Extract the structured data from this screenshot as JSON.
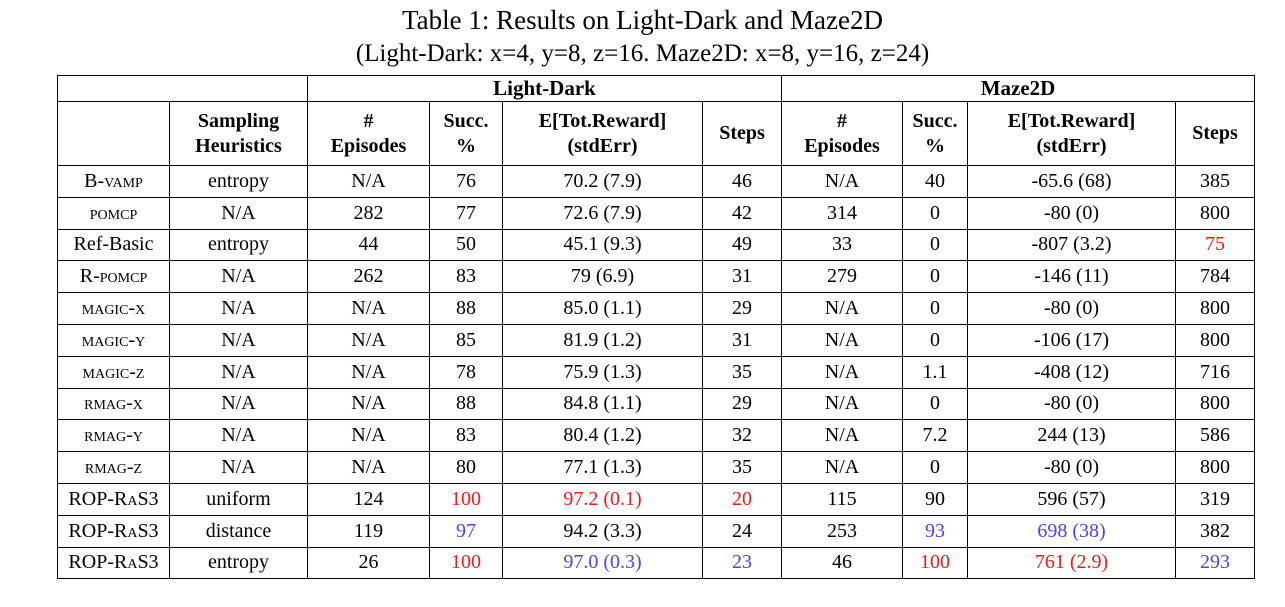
{
  "caption": {
    "title": "Table 1: Results on Light-Dark and Maze2D",
    "subtitle": "(Light-Dark: x=4, y=8, z=16. Maze2D: x=8, y=16, z=24)"
  },
  "colors": {
    "red": "#f81515",
    "blue": "#4545f2",
    "black": "#000000"
  },
  "table": {
    "group_headers": [
      {
        "label": "Light-Dark",
        "span": 4
      },
      {
        "label": "Maze2D",
        "span": 4
      }
    ],
    "column_headers": [
      "",
      "Sampling\nHeuristics",
      "#\nEpisodes",
      "Succ.\n%",
      "E[Tot.Reward]\n(stdErr)",
      "Steps",
      "#\nEpisodes",
      "Succ.\n%",
      "E[Tot.Reward]\n(stdErr)",
      "Steps"
    ],
    "rows": [
      {
        "label": "B-vamp",
        "smallcaps": true,
        "cells": [
          {
            "t": "entropy"
          },
          {
            "t": "N/A"
          },
          {
            "t": "76"
          },
          {
            "t": "70.2 (7.9)"
          },
          {
            "t": "46"
          },
          {
            "t": "N/A"
          },
          {
            "t": "40"
          },
          {
            "t": "-65.6 (68)"
          },
          {
            "t": "385"
          }
        ]
      },
      {
        "label": "pomcp",
        "smallcaps": true,
        "cells": [
          {
            "t": "N/A"
          },
          {
            "t": "282"
          },
          {
            "t": "77"
          },
          {
            "t": "72.6 (7.9)"
          },
          {
            "t": "42"
          },
          {
            "t": "314"
          },
          {
            "t": "0"
          },
          {
            "t": "-80 (0)"
          },
          {
            "t": "800"
          }
        ]
      },
      {
        "label": "Ref-Basic",
        "smallcaps": false,
        "cells": [
          {
            "t": "entropy"
          },
          {
            "t": "44"
          },
          {
            "t": "50"
          },
          {
            "t": "45.1 (9.3)"
          },
          {
            "t": "49"
          },
          {
            "t": "33"
          },
          {
            "t": "0"
          },
          {
            "t": "-807 (3.2)"
          },
          {
            "t": "75",
            "c": "red"
          }
        ]
      },
      {
        "label": "R-pomcp",
        "smallcaps": true,
        "cells": [
          {
            "t": "N/A"
          },
          {
            "t": "262"
          },
          {
            "t": "83"
          },
          {
            "t": "79 (6.9)"
          },
          {
            "t": "31"
          },
          {
            "t": "279"
          },
          {
            "t": "0"
          },
          {
            "t": "-146 (11)"
          },
          {
            "t": "784"
          }
        ]
      },
      {
        "label": "magic-x",
        "smallcaps": true,
        "cells": [
          {
            "t": "N/A"
          },
          {
            "t": "N/A"
          },
          {
            "t": "88"
          },
          {
            "t": "85.0 (1.1)"
          },
          {
            "t": "29"
          },
          {
            "t": "N/A"
          },
          {
            "t": "0"
          },
          {
            "t": "-80 (0)"
          },
          {
            "t": "800"
          }
        ]
      },
      {
        "label": "magic-y",
        "smallcaps": true,
        "cells": [
          {
            "t": "N/A"
          },
          {
            "t": "N/A"
          },
          {
            "t": "85"
          },
          {
            "t": "81.9 (1.2)"
          },
          {
            "t": "31"
          },
          {
            "t": "N/A"
          },
          {
            "t": "0"
          },
          {
            "t": "-106 (17)"
          },
          {
            "t": "800"
          }
        ]
      },
      {
        "label": "magic-z",
        "smallcaps": true,
        "cells": [
          {
            "t": "N/A"
          },
          {
            "t": "N/A"
          },
          {
            "t": "78"
          },
          {
            "t": "75.9 (1.3)"
          },
          {
            "t": "35"
          },
          {
            "t": "N/A"
          },
          {
            "t": "1.1"
          },
          {
            "t": "-408 (12)"
          },
          {
            "t": "716"
          }
        ]
      },
      {
        "label": "rmag-x",
        "smallcaps": true,
        "cells": [
          {
            "t": "N/A"
          },
          {
            "t": "N/A"
          },
          {
            "t": "88"
          },
          {
            "t": "84.8 (1.1)"
          },
          {
            "t": "29"
          },
          {
            "t": "N/A"
          },
          {
            "t": "0"
          },
          {
            "t": "-80 (0)"
          },
          {
            "t": "800"
          }
        ]
      },
      {
        "label": "rmag-y",
        "smallcaps": true,
        "cells": [
          {
            "t": "N/A"
          },
          {
            "t": "N/A"
          },
          {
            "t": "83"
          },
          {
            "t": "80.4 (1.2)"
          },
          {
            "t": "32"
          },
          {
            "t": "N/A"
          },
          {
            "t": "7.2"
          },
          {
            "t": "244 (13)"
          },
          {
            "t": "586"
          }
        ]
      },
      {
        "label": "rmag-z",
        "smallcaps": true,
        "cells": [
          {
            "t": "N/A"
          },
          {
            "t": "N/A"
          },
          {
            "t": "80"
          },
          {
            "t": "77.1 (1.3)"
          },
          {
            "t": "35"
          },
          {
            "t": "N/A"
          },
          {
            "t": "0"
          },
          {
            "t": "-80 (0)"
          },
          {
            "t": "800"
          }
        ]
      },
      {
        "label": "ROP-RaS3",
        "smallcaps": true,
        "cells": [
          {
            "t": "uniform"
          },
          {
            "t": "124"
          },
          {
            "t": "100",
            "c": "red"
          },
          {
            "t": "97.2 (0.1)",
            "c": "red"
          },
          {
            "t": "20",
            "c": "red"
          },
          {
            "t": "115"
          },
          {
            "t": "90"
          },
          {
            "t": "596 (57)"
          },
          {
            "t": "319"
          }
        ]
      },
      {
        "label": "ROP-RaS3",
        "smallcaps": true,
        "cells": [
          {
            "t": "distance"
          },
          {
            "t": "119"
          },
          {
            "t": "97",
            "c": "blue"
          },
          {
            "t": "94.2 (3.3)"
          },
          {
            "t": "24"
          },
          {
            "t": "253"
          },
          {
            "t": "93",
            "c": "blue"
          },
          {
            "t": "698 (38)",
            "c": "blue"
          },
          {
            "t": "382"
          }
        ]
      },
      {
        "label": "ROP-RaS3",
        "smallcaps": true,
        "cells": [
          {
            "t": "entropy"
          },
          {
            "t": "26"
          },
          {
            "t": "100",
            "c": "red"
          },
          {
            "t": "97.0 (0.3)",
            "c": "blue"
          },
          {
            "t": "23",
            "c": "blue"
          },
          {
            "t": "46"
          },
          {
            "t": "100",
            "c": "red"
          },
          {
            "t": "761 (2.9)",
            "c": "red"
          },
          {
            "t": "293",
            "c": "blue"
          }
        ]
      }
    ]
  }
}
